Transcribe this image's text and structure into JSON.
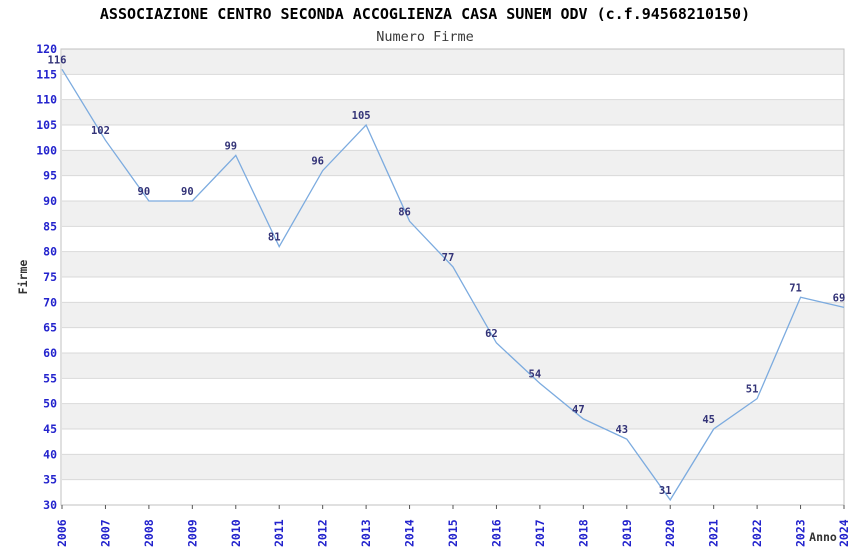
{
  "chart_data": {
    "type": "line",
    "title": "ASSOCIAZIONE CENTRO SECONDA ACCOGLIENZA CASA SUNEM ODV (c.f.94568210150)",
    "subtitle": "Numero Firme",
    "xlabel": "Anno",
    "ylabel": "Firme",
    "categories": [
      "2006",
      "2007",
      "2008",
      "2009",
      "2010",
      "2011",
      "2012",
      "2013",
      "2014",
      "2015",
      "2016",
      "2017",
      "2018",
      "2019",
      "2020",
      "2021",
      "2022",
      "2023",
      "2024"
    ],
    "values": [
      116,
      102,
      90,
      90,
      99,
      81,
      96,
      105,
      86,
      77,
      62,
      54,
      47,
      43,
      31,
      45,
      51,
      71,
      69
    ],
    "ylim": [
      30,
      120
    ],
    "ytick_step": 5,
    "grid": true,
    "legend": "none",
    "colors": {
      "line": "#7cabdf",
      "tick_label": "#2323cd",
      "value_label": "#333377",
      "axis_title": "#333333",
      "band_gray": "#f0f0f0",
      "band_white": "#ffffff",
      "grid_line": "#d9d9d9",
      "plot_border": "#c0c0c0",
      "tick_mark": "#555555"
    }
  }
}
